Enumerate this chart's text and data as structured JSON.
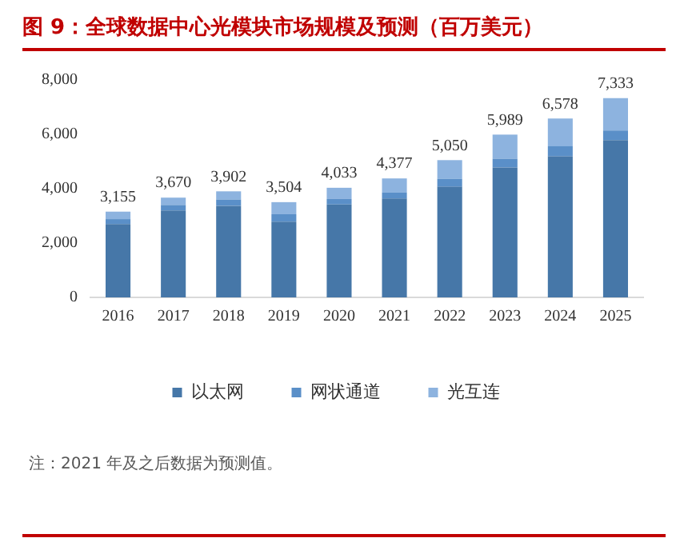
{
  "chart_data": {
    "type": "bar",
    "title": "图 9：全球数据中心光模块市场规模及预测（百万美元）",
    "categories": [
      "2016",
      "2017",
      "2018",
      "2019",
      "2020",
      "2021",
      "2022",
      "2023",
      "2024",
      "2025"
    ],
    "stacked": true,
    "series": [
      {
        "name": "以太网",
        "color": "#4677a8",
        "values": [
          2700,
          3200,
          3370,
          2790,
          3420,
          3640,
          4070,
          4780,
          5190,
          5790
        ]
      },
      {
        "name": "网状通道",
        "color": "#5a8fc8",
        "values": [
          180,
          200,
          230,
          270,
          200,
          215,
          290,
          320,
          370,
          350
        ]
      },
      {
        "name": "光互连",
        "color": "#8db3df",
        "values": [
          275,
          270,
          302,
          444,
          413,
          522,
          690,
          889,
          1018,
          1193
        ]
      }
    ],
    "totals": [
      "3,155",
      "3,670",
      "3,902",
      "3,504",
      "4,033",
      "4,377",
      "5,050",
      "5,989",
      "6,578",
      "7,333"
    ],
    "ylim": [
      0,
      8000
    ],
    "yticks": [
      {
        "value": 0,
        "label": "0"
      },
      {
        "value": 2000,
        "label": "2,000"
      },
      {
        "value": 4000,
        "label": "4,000"
      },
      {
        "value": 6000,
        "label": "6,000"
      },
      {
        "value": 8000,
        "label": "8,000"
      }
    ],
    "grid": false,
    "legend": "bottom",
    "annotations": [
      "注：2021 年及之后数据为预测值。"
    ]
  }
}
